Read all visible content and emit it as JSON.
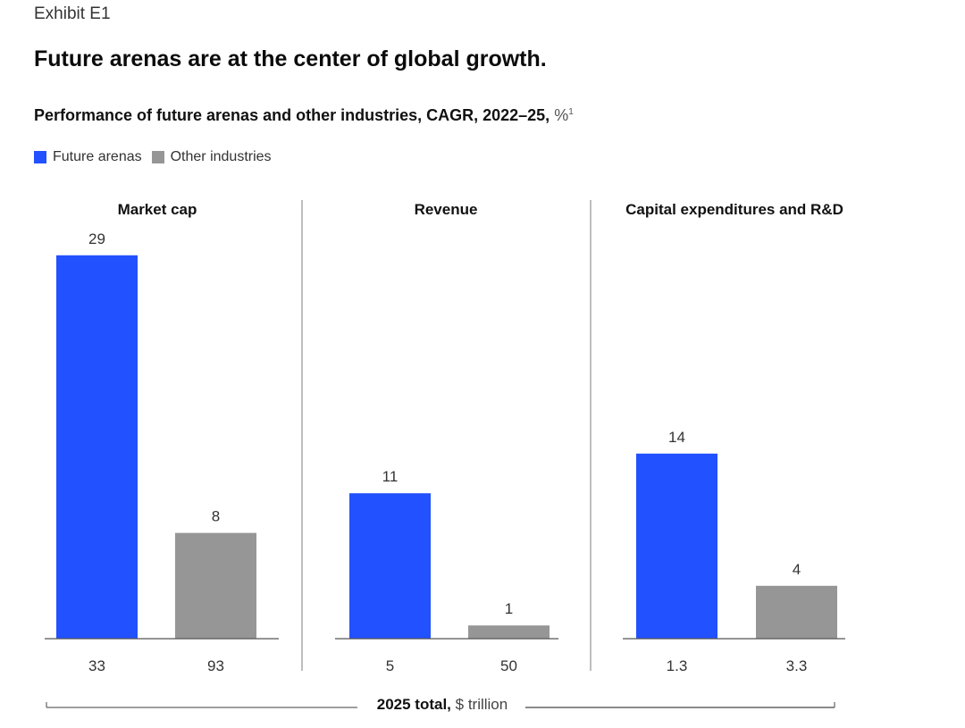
{
  "header": {
    "exhibit": "Exhibit E1",
    "title": "Future arenas are at the center of global growth.",
    "subtitle_bold": "Performance of future arenas and other industries, CAGR, 2022–25,",
    "subtitle_unit": "%",
    "subtitle_footnote": "1"
  },
  "legend": [
    {
      "label": "Future arenas",
      "color": "#2251ff"
    },
    {
      "label": "Other industries",
      "color": "#969696"
    }
  ],
  "footer": {
    "bold": "2025 total,",
    "unit": "$ trillion"
  },
  "chart_data": {
    "type": "bar",
    "title": "Performance of future arenas and other industries, CAGR, 2022–25, %",
    "series_names": [
      "Future arenas",
      "Other industries"
    ],
    "colors": {
      "Future arenas": "#2251ff",
      "Other industries": "#969696"
    },
    "ylim": [
      0,
      29
    ],
    "grid": false,
    "legend_position": "top-left",
    "panels": [
      {
        "title": "Market cap",
        "values": [
          29,
          8
        ],
        "totals": [
          "33",
          "93"
        ]
      },
      {
        "title": "Revenue",
        "values": [
          11,
          1
        ],
        "totals": [
          "5",
          "50"
        ]
      },
      {
        "title": "Capital expenditures and R&D",
        "values": [
          14,
          4
        ],
        "totals": [
          "1.3",
          "3.3"
        ]
      }
    ],
    "totals_label": "2025 total, $ trillion"
  }
}
